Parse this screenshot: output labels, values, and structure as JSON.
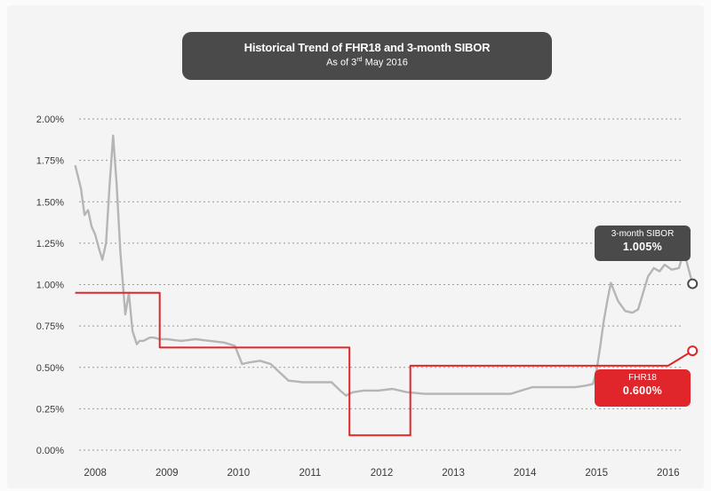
{
  "title": "Historical Trend of FHR18 and 3-month SIBOR",
  "subtitle": {
    "prefix": "As of 3",
    "sup": "rd",
    "suffix": " May 2016"
  },
  "colors": {
    "fhr18": "#e0262a",
    "sibor": "#b5b5b5",
    "grid": "#9a9a9a",
    "label_box": "#4a4a4a"
  },
  "callouts": {
    "sibor": {
      "name": "3-month SIBOR",
      "value": "1.005%"
    },
    "fhr18": {
      "name": "FHR18",
      "value": "0.600%"
    }
  },
  "chart_data": {
    "type": "line",
    "title": "Historical Trend of FHR18 and 3-month SIBOR",
    "subtitle": "As of 3rd May 2016",
    "xlabel": "",
    "ylabel": "",
    "xlim": [
      2007.7,
      2016.35
    ],
    "ylim": [
      0,
      2.0
    ],
    "x_tick_values": [
      2008,
      2009,
      2010,
      2011,
      2012,
      2013,
      2014,
      2015,
      2016
    ],
    "x_tick_labels": [
      "2008",
      "2009",
      "2010",
      "2011",
      "2012",
      "2013",
      "2014",
      "2015",
      "2016"
    ],
    "y_tick_values": [
      0,
      0.25,
      0.5,
      0.75,
      1.0,
      1.25,
      1.5,
      1.75,
      2.0
    ],
    "y_tick_labels": [
      "0.00%",
      "0.25%",
      "0.50%",
      "0.75%",
      "1.00%",
      "1.25%",
      "1.50%",
      "1.75%",
      "2.00%"
    ],
    "grid": true,
    "series": [
      {
        "name": "3-month SIBOR",
        "color": "#b5b5b5",
        "x": [
          2007.72,
          2007.8,
          2007.85,
          2007.9,
          2007.95,
          2008.0,
          2008.05,
          2008.1,
          2008.15,
          2008.2,
          2008.25,
          2008.3,
          2008.35,
          2008.42,
          2008.47,
          2008.52,
          2008.58,
          2008.62,
          2008.67,
          2008.72,
          2008.76,
          2008.82,
          2008.9,
          2009.0,
          2009.2,
          2009.4,
          2009.6,
          2009.8,
          2009.95,
          2010.05,
          2010.15,
          2010.3,
          2010.45,
          2010.55,
          2010.7,
          2010.9,
          2011.1,
          2011.3,
          2011.42,
          2011.5,
          2011.6,
          2011.75,
          2011.95,
          2012.15,
          2012.35,
          2012.6,
          2012.9,
          2013.2,
          2013.5,
          2013.8,
          2014.1,
          2014.4,
          2014.7,
          2014.85,
          2014.95,
          2015.0,
          2015.05,
          2015.1,
          2015.15,
          2015.2,
          2015.3,
          2015.4,
          2015.5,
          2015.58,
          2015.65,
          2015.72,
          2015.8,
          2015.88,
          2015.95,
          2016.05,
          2016.15,
          2016.22,
          2016.34
        ],
        "values": [
          1.72,
          1.58,
          1.42,
          1.45,
          1.35,
          1.3,
          1.22,
          1.15,
          1.25,
          1.6,
          1.9,
          1.6,
          1.2,
          0.82,
          0.95,
          0.72,
          0.64,
          0.66,
          0.66,
          0.67,
          0.68,
          0.68,
          0.67,
          0.67,
          0.66,
          0.67,
          0.66,
          0.65,
          0.63,
          0.52,
          0.53,
          0.54,
          0.52,
          0.48,
          0.42,
          0.41,
          0.41,
          0.41,
          0.36,
          0.33,
          0.35,
          0.36,
          0.36,
          0.37,
          0.35,
          0.34,
          0.34,
          0.34,
          0.34,
          0.34,
          0.38,
          0.38,
          0.38,
          0.39,
          0.4,
          0.48,
          0.62,
          0.78,
          0.9,
          1.01,
          0.9,
          0.84,
          0.83,
          0.85,
          0.95,
          1.05,
          1.1,
          1.08,
          1.12,
          1.09,
          1.1,
          1.2,
          1.005
        ]
      },
      {
        "name": "FHR18",
        "color": "#e0262a",
        "x": [
          2007.72,
          2008.9,
          2008.9,
          2011.55,
          2011.55,
          2012.4,
          2012.4,
          2015.75,
          2016.0,
          2016.34
        ],
        "values": [
          0.95,
          0.95,
          0.62,
          0.62,
          0.09,
          0.09,
          0.51,
          0.51,
          0.51,
          0.6
        ],
        "step": true
      }
    ]
  }
}
